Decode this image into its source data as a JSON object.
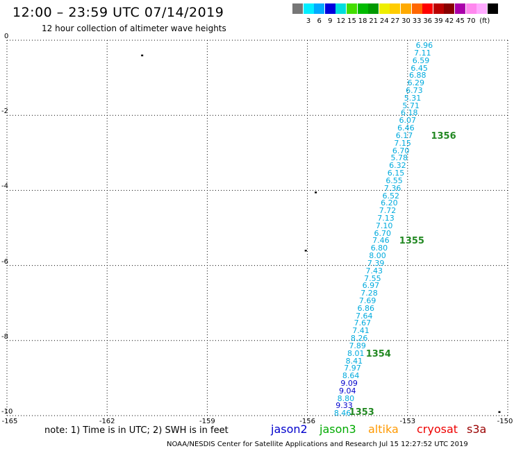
{
  "title": "12:00 – 23:59 UTC 07/14/2019",
  "subtitle": "12 hour collection of altimeter wave heights",
  "color_scale": {
    "colors": [
      "#777777",
      "#00eeff",
      "#00aaff",
      "#0000dd",
      "#00dddd",
      "#44dd00",
      "#00bb00",
      "#009900",
      "#eeee00",
      "#ffcc00",
      "#ffaa00",
      "#ff6600",
      "#ff0000",
      "#bb0000",
      "#880000",
      "#aa00aa",
      "#ff88ee",
      "#ffaaff",
      "#000000"
    ],
    "labels": [
      "3",
      "6",
      "9",
      "12",
      "15",
      "18",
      "21",
      "24",
      "27",
      "30",
      "33",
      "36",
      "39",
      "42",
      "45",
      "70"
    ],
    "unit": "(ft)"
  },
  "axes": {
    "y_ticks": [
      "0",
      "-2",
      "-4",
      "-6",
      "-8",
      "-10"
    ],
    "x_ticks": [
      "-165",
      "-162",
      "-159",
      "-156",
      "-153",
      "-150"
    ]
  },
  "tracks": [
    {
      "color": "#00aadd",
      "points": [
        {
          "lon": -152.5,
          "lat": -0.15,
          "value": "6.96"
        },
        {
          "lon": -152.55,
          "lat": -0.35,
          "value": "7.11"
        },
        {
          "lon": -152.6,
          "lat": -0.55,
          "value": "6.59"
        },
        {
          "lon": -152.65,
          "lat": -0.75,
          "value": "6.45"
        },
        {
          "lon": -152.7,
          "lat": -0.95,
          "value": "6.88"
        },
        {
          "lon": -152.75,
          "lat": -1.15,
          "value": "6.29"
        },
        {
          "lon": -152.8,
          "lat": -1.35,
          "value": "6.73"
        },
        {
          "lon": -152.85,
          "lat": -1.55,
          "value": "5.31"
        },
        {
          "lon": -152.9,
          "lat": -1.75,
          "value": "5.71"
        },
        {
          "lon": -152.95,
          "lat": -1.95,
          "value": "6.18"
        },
        {
          "lon": -153.0,
          "lat": -2.15,
          "value": "6.07"
        },
        {
          "lon": -153.05,
          "lat": -2.35,
          "value": "6.46"
        },
        {
          "lon": -153.1,
          "lat": -2.55,
          "value": "6.17"
        },
        {
          "lon": -153.15,
          "lat": -2.75,
          "value": "7.15"
        },
        {
          "lon": -153.2,
          "lat": -2.95,
          "value": "6.70"
        },
        {
          "lon": -153.25,
          "lat": -3.15,
          "value": "5.78"
        },
        {
          "lon": -153.3,
          "lat": -3.35,
          "value": "6.32"
        },
        {
          "lon": -153.35,
          "lat": -3.55,
          "value": "6.15"
        },
        {
          "lon": -153.4,
          "lat": -3.75,
          "value": "6.55"
        },
        {
          "lon": -153.45,
          "lat": -3.95,
          "value": "7.36"
        },
        {
          "lon": -153.5,
          "lat": -4.15,
          "value": "6.52"
        },
        {
          "lon": -153.55,
          "lat": -4.35,
          "value": "6.20"
        },
        {
          "lon": -153.6,
          "lat": -4.55,
          "value": "7.72"
        },
        {
          "lon": -153.65,
          "lat": -4.75,
          "value": "7.13"
        },
        {
          "lon": -153.7,
          "lat": -4.95,
          "value": "7.10"
        },
        {
          "lon": -153.75,
          "lat": -5.15,
          "value": "6.70"
        },
        {
          "lon": -153.8,
          "lat": -5.35,
          "value": "7.46"
        },
        {
          "lon": -153.85,
          "lat": -5.55,
          "value": "6.80"
        },
        {
          "lon": -153.9,
          "lat": -5.75,
          "value": "8.00"
        },
        {
          "lon": -153.95,
          "lat": -5.95,
          "value": "7.39"
        },
        {
          "lon": -154.0,
          "lat": -6.15,
          "value": "7.43"
        },
        {
          "lon": -154.05,
          "lat": -6.35,
          "value": "7.55"
        },
        {
          "lon": -154.1,
          "lat": -6.55,
          "value": "6.97"
        },
        {
          "lon": -154.15,
          "lat": -6.75,
          "value": "7.28"
        },
        {
          "lon": -154.2,
          "lat": -6.95,
          "value": "7.69"
        },
        {
          "lon": -154.25,
          "lat": -7.15,
          "value": "6.86"
        },
        {
          "lon": -154.3,
          "lat": -7.35,
          "value": "7.64"
        },
        {
          "lon": -154.35,
          "lat": -7.55,
          "value": "7.67"
        },
        {
          "lon": -154.4,
          "lat": -7.75,
          "value": "7.41"
        },
        {
          "lon": -154.45,
          "lat": -7.95,
          "value": "8.26"
        },
        {
          "lon": -154.5,
          "lat": -8.15,
          "value": "7.89"
        },
        {
          "lon": -154.55,
          "lat": -8.35,
          "value": "8.01"
        },
        {
          "lon": -154.6,
          "lat": -8.55,
          "value": "8.41"
        },
        {
          "lon": -154.65,
          "lat": -8.75,
          "value": "7.97"
        },
        {
          "lon": -154.7,
          "lat": -8.95,
          "value": "8.64"
        },
        {
          "lon": -154.75,
          "lat": -9.15,
          "value": "9.09",
          "color": "#0000cc"
        },
        {
          "lon": -154.8,
          "lat": -9.35,
          "value": "9.04",
          "color": "#0000cc"
        },
        {
          "lon": -154.85,
          "lat": -9.55,
          "value": "8.80"
        },
        {
          "lon": -154.9,
          "lat": -9.75,
          "value": "9.33",
          "color": "#0000cc"
        },
        {
          "lon": -154.95,
          "lat": -9.95,
          "value": "8.46"
        }
      ]
    }
  ],
  "pass_numbers": [
    {
      "label": "1356",
      "lon": -152.3,
      "lat": -2.55
    },
    {
      "label": "1355",
      "lon": -153.25,
      "lat": -5.35
    },
    {
      "label": "1354",
      "lon": -154.25,
      "lat": -8.35
    },
    {
      "label": "1353",
      "lon": -154.75,
      "lat": -9.9
    }
  ],
  "islands": [
    {
      "lon": -160.95,
      "lat": -0.4
    },
    {
      "lon": -155.75,
      "lat": -4.05
    },
    {
      "lon": -156.05,
      "lat": -5.6
    },
    {
      "lon": -150.25,
      "lat": -9.9
    }
  ],
  "note": "note: 1) Time is in UTC; 2) SWH is in feet",
  "satellites": [
    {
      "name": "jason2",
      "color": "#0000cc"
    },
    {
      "name": "jason3",
      "color": "#00aa00"
    },
    {
      "name": "altika",
      "color": "#ff9900"
    },
    {
      "name": "cryosat",
      "color": "#ee0000"
    },
    {
      "name": "s3a",
      "color": "#990000"
    }
  ],
  "footer": "NOAA/NESDIS Center for Satellite Applications and Research     Jul 15 12:27:52 UTC 2019"
}
